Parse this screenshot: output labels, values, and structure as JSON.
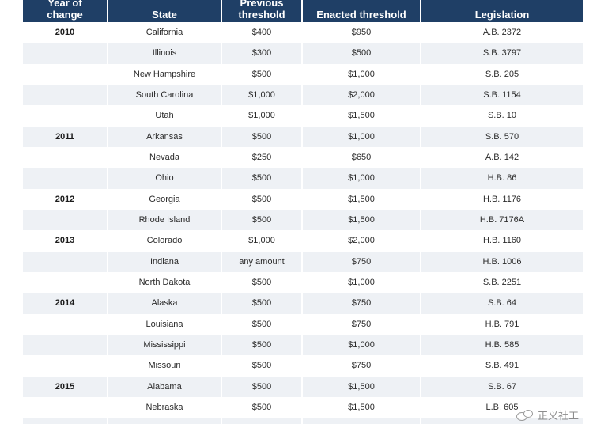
{
  "table": {
    "headers": [
      "Year of change",
      "State",
      "Previous threshold",
      "Enacted threshold",
      "Legislation"
    ],
    "rows": [
      {
        "year": "2010",
        "state": "California",
        "previous": "$400",
        "enacted": "$950",
        "legislation": "A.B. 2372"
      },
      {
        "year": "",
        "state": "Illinois",
        "previous": "$300",
        "enacted": "$500",
        "legislation": "S.B. 3797"
      },
      {
        "year": "",
        "state": "New Hampshire",
        "previous": "$500",
        "enacted": "$1,000",
        "legislation": "S.B. 205"
      },
      {
        "year": "",
        "state": "South Carolina",
        "previous": "$1,000",
        "enacted": "$2,000",
        "legislation": "S.B. 1154"
      },
      {
        "year": "",
        "state": "Utah",
        "previous": "$1,000",
        "enacted": "$1,500",
        "legislation": "S.B. 10"
      },
      {
        "year": "2011",
        "state": "Arkansas",
        "previous": "$500",
        "enacted": "$1,000",
        "legislation": "S.B. 570"
      },
      {
        "year": "",
        "state": "Nevada",
        "previous": "$250",
        "enacted": "$650",
        "legislation": "A.B. 142"
      },
      {
        "year": "",
        "state": "Ohio",
        "previous": "$500",
        "enacted": "$1,000",
        "legislation": "H.B. 86"
      },
      {
        "year": "2012",
        "state": "Georgia",
        "previous": "$500",
        "enacted": "$1,500",
        "legislation": "H.B. 1176"
      },
      {
        "year": "",
        "state": "Rhode Island",
        "previous": "$500",
        "enacted": "$1,500",
        "legislation": "H.B. 7176A"
      },
      {
        "year": "2013",
        "state": "Colorado",
        "previous": "$1,000",
        "enacted": "$2,000",
        "legislation": "H.B. 1160"
      },
      {
        "year": "",
        "state": "Indiana",
        "previous": "any amount",
        "enacted": "$750",
        "legislation": "H.B. 1006"
      },
      {
        "year": "",
        "state": "North Dakota",
        "previous": "$500",
        "enacted": "$1,000",
        "legislation": "S.B. 2251"
      },
      {
        "year": "2014",
        "state": "Alaska",
        "previous": "$500",
        "enacted": "$750",
        "legislation": "S.B. 64"
      },
      {
        "year": "",
        "state": "Louisiana",
        "previous": "$500",
        "enacted": "$750",
        "legislation": "H.B. 791"
      },
      {
        "year": "",
        "state": "Mississippi",
        "previous": "$500",
        "enacted": "$1,000",
        "legislation": "H.B. 585"
      },
      {
        "year": "",
        "state": "Missouri",
        "previous": "$500",
        "enacted": "$750",
        "legislation": "S.B. 491"
      },
      {
        "year": "2015",
        "state": "Alabama",
        "previous": "$500",
        "enacted": "$1,500",
        "legislation": "S.B. 67"
      },
      {
        "year": "",
        "state": "Nebraska",
        "previous": "$500",
        "enacted": "$1,500",
        "legislation": "L.B. 605"
      },
      {
        "year": "",
        "state": "",
        "previous": "",
        "enacted": "",
        "legislation": ""
      }
    ]
  },
  "watermark": {
    "text": "正义社工"
  },
  "colors": {
    "header_bg": "#1f3f66",
    "stripe_bg": "#eef1f5"
  }
}
